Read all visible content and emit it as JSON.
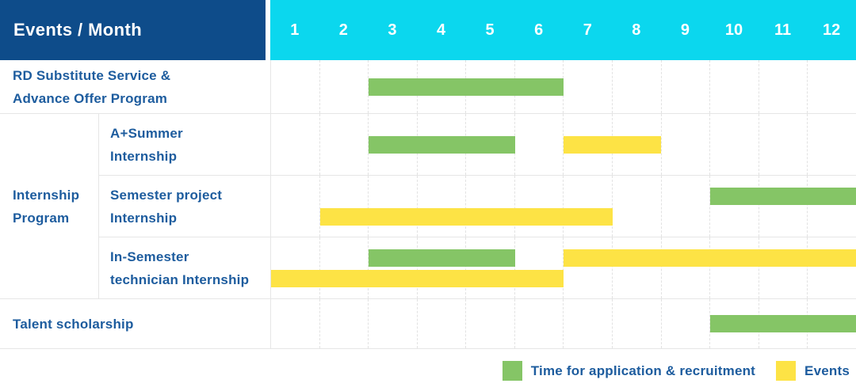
{
  "colors": {
    "header_bg": "#0e4c8a",
    "month_header_bg": "#0bd7ee",
    "application_green": "#85c566",
    "events_yellow": "#fde345",
    "label_text": "#1d5c9e",
    "grid_line": "#e6e6e6"
  },
  "chart_data": {
    "type": "gantt",
    "title": "Events / Month",
    "months": [
      "1",
      "2",
      "3",
      "4",
      "5",
      "6",
      "7",
      "8",
      "9",
      "10",
      "11",
      "12"
    ],
    "x_axis": {
      "label": "Month",
      "range": [
        1,
        12
      ]
    },
    "group": {
      "label": "Internship Program",
      "label_lines": [
        "Internship",
        "Program"
      ]
    },
    "rows": [
      {
        "label": "RD Substitute Service & Advance Offer Program",
        "label_lines": [
          "RD Substitute Service &",
          "Advance Offer Program"
        ],
        "group": "",
        "num_lines": 1,
        "bars": [
          {
            "series": "application",
            "start_month": 3,
            "end_month": 6,
            "line": 0
          }
        ]
      },
      {
        "label": "A+Summer Internship",
        "label_lines": [
          "A+Summer",
          "Internship"
        ],
        "group": "Internship Program",
        "num_lines": 1,
        "bars": [
          {
            "series": "application",
            "start_month": 3,
            "end_month": 5,
            "line": 0
          },
          {
            "series": "events",
            "start_month": 7,
            "end_month": 8,
            "line": 0
          }
        ]
      },
      {
        "label": "Semester project Internship",
        "label_lines": [
          "Semester project",
          "Internship"
        ],
        "group": "Internship Program",
        "num_lines": 2,
        "bars": [
          {
            "series": "application",
            "start_month": 10,
            "end_month": 12,
            "line": 0
          },
          {
            "series": "events",
            "start_month": 2,
            "end_month": 7,
            "line": 1
          }
        ]
      },
      {
        "label": "In-Semester technician Internship",
        "label_lines": [
          "In-Semester",
          "technician Internship"
        ],
        "group": "Internship Program",
        "num_lines": 2,
        "bars": [
          {
            "series": "application",
            "start_month": 3,
            "end_month": 5,
            "line": 0
          },
          {
            "series": "events",
            "start_month": 7,
            "end_month": 12,
            "line": 0
          },
          {
            "series": "events",
            "start_month": 1,
            "end_month": 6,
            "line": 1
          }
        ]
      },
      {
        "label": "Talent scholarship",
        "label_lines": [
          "Talent scholarship"
        ],
        "group": "",
        "num_lines": 1,
        "bars": [
          {
            "series": "application",
            "start_month": 10,
            "end_month": 12,
            "line": 0
          }
        ]
      }
    ],
    "legend": [
      {
        "key": "application",
        "label": "Time for application & recruitment",
        "color": "#85c566"
      },
      {
        "key": "events",
        "label": "Events",
        "color": "#fde345"
      }
    ]
  }
}
